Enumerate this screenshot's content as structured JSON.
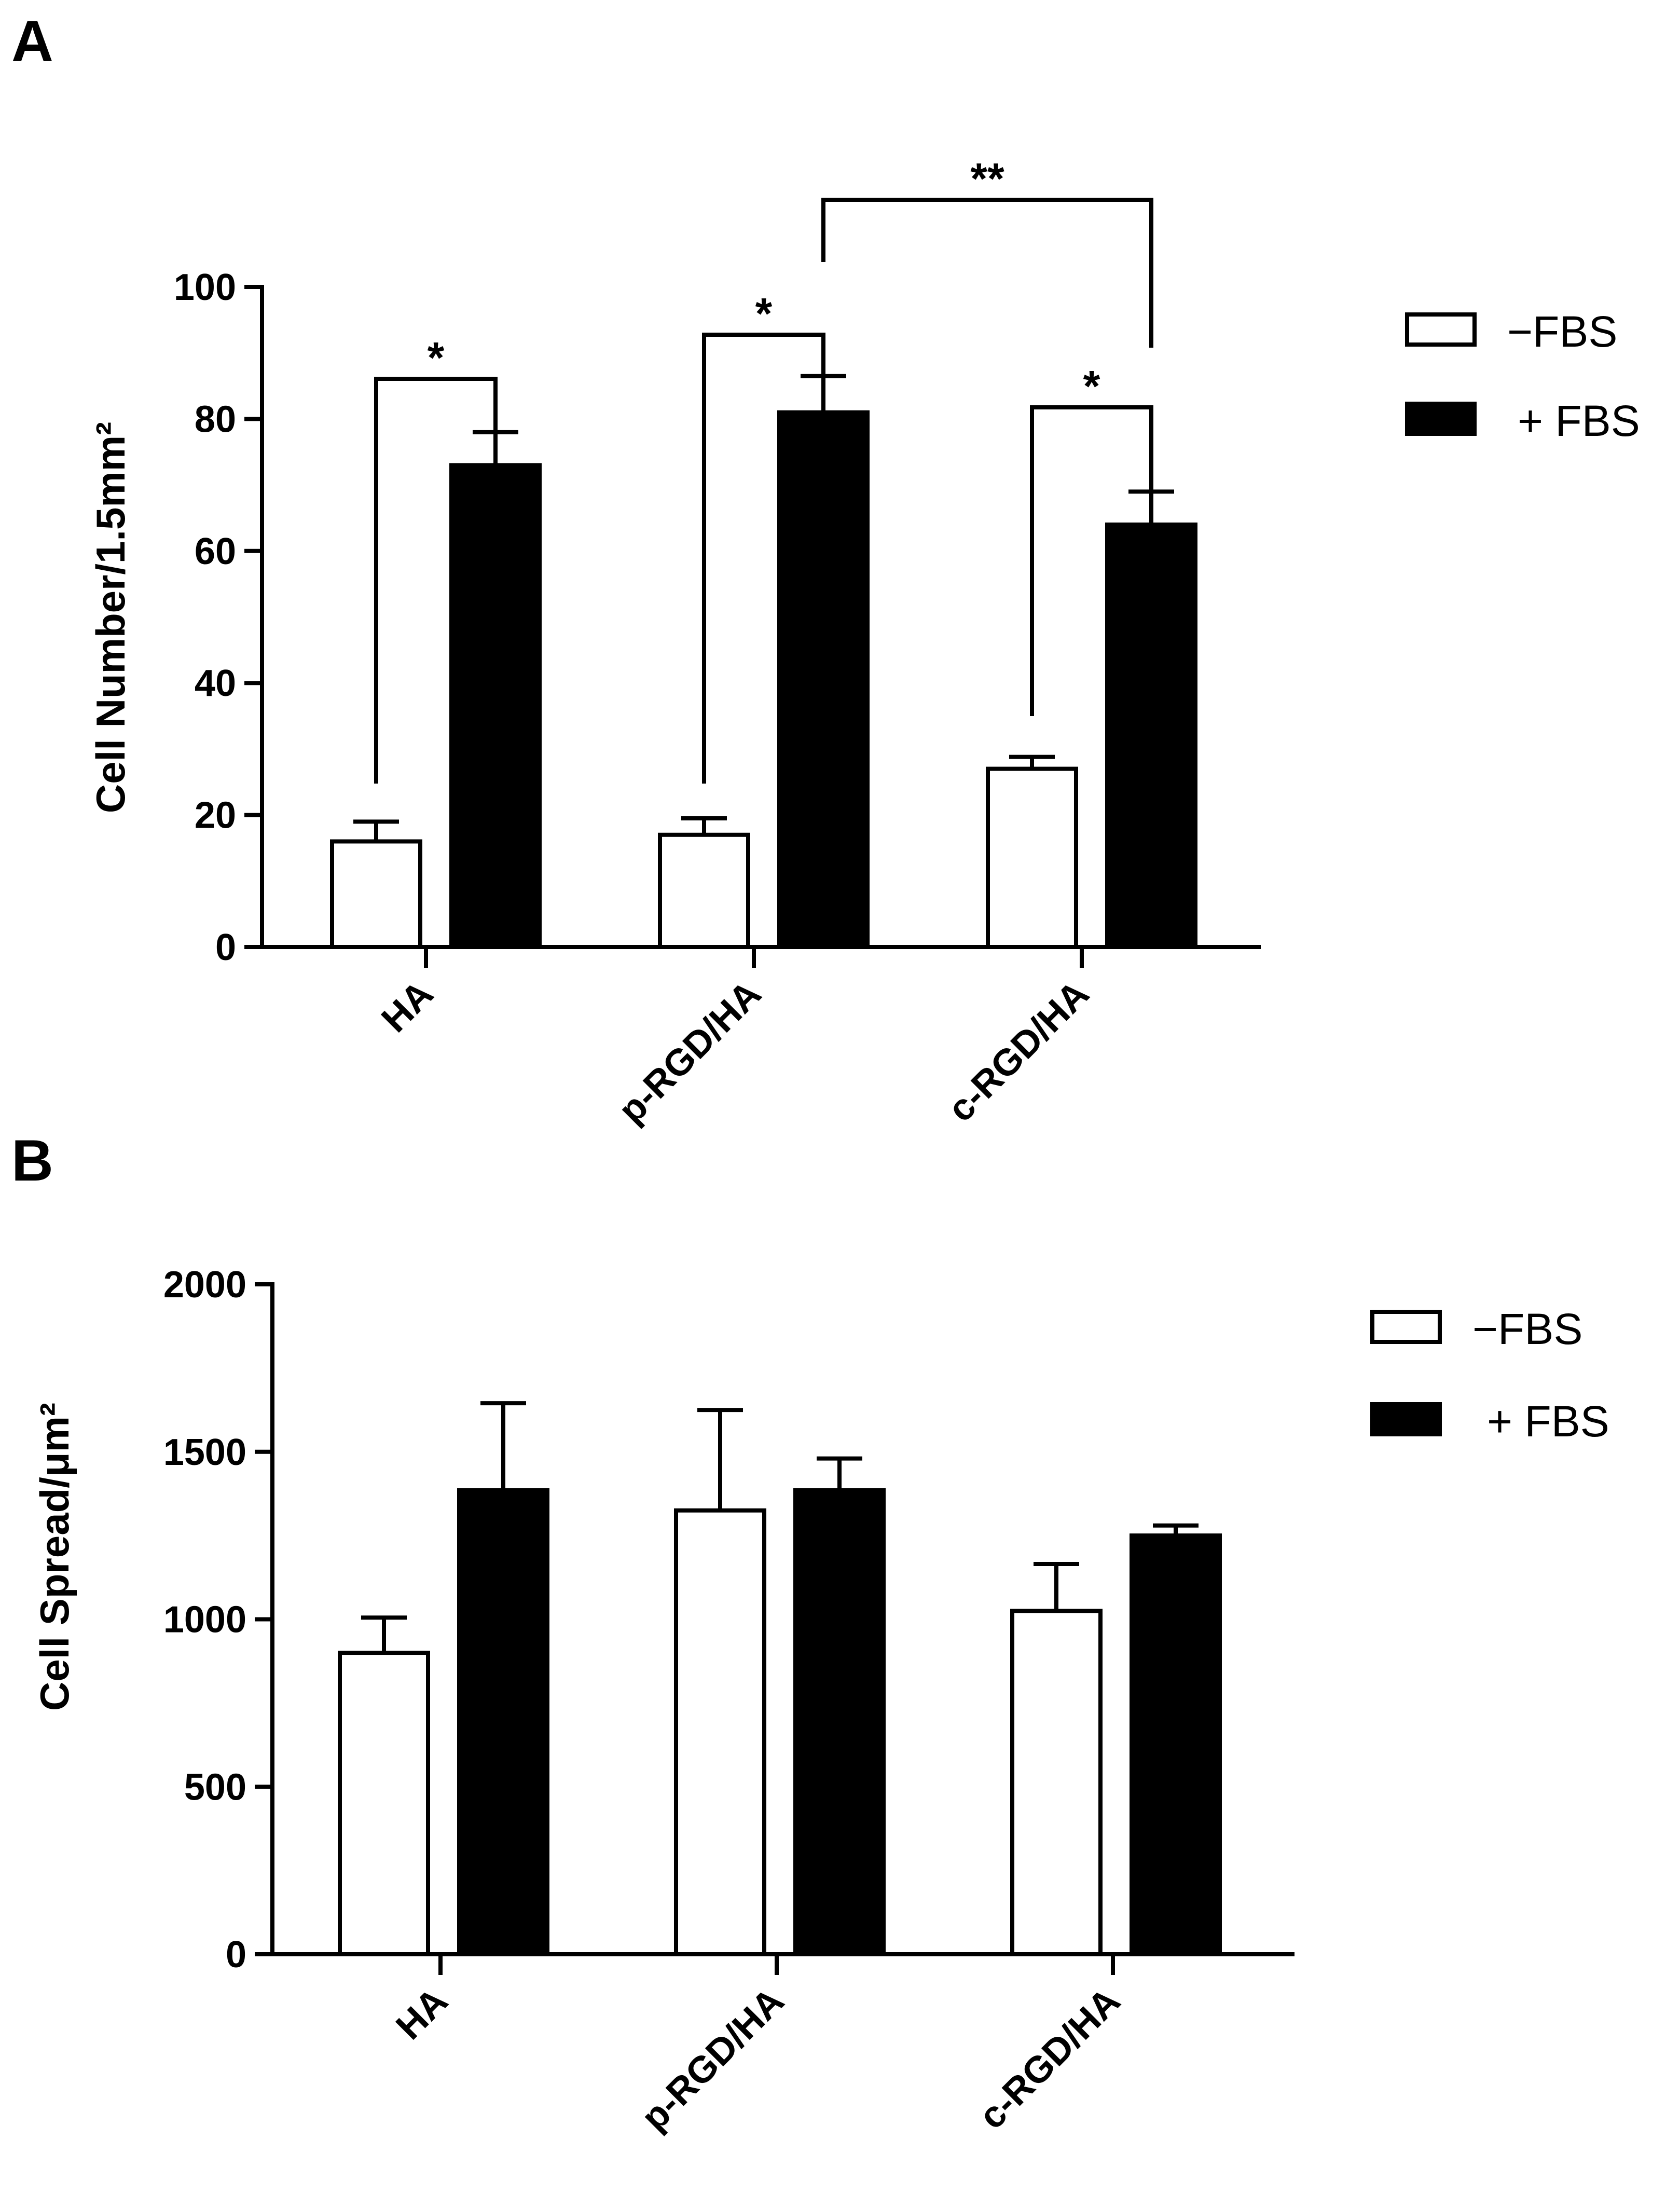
{
  "chart_data": [
    {
      "panel_label": "A",
      "type": "bar",
      "ylabel": "Cell Number/1.5mm²",
      "ylim": [
        0,
        100
      ],
      "yticks": [
        "0",
        "20",
        "40",
        "60",
        "80",
        "100"
      ],
      "categories": [
        "HA",
        "p-RGD/HA",
        "c-RGD/HA"
      ],
      "legend": {
        "placement": "top-right"
      },
      "series": [
        {
          "name": "−FBS",
          "fill": "#ffffff",
          "values": [
            16,
            17,
            27
          ],
          "errors": [
            3,
            2.5,
            1.8
          ]
        },
        {
          "name": "+ FBS",
          "fill": "#000000",
          "values": [
            73,
            81,
            64
          ],
          "errors": [
            5,
            5.5,
            5
          ]
        }
      ],
      "significance": [
        {
          "label": "*",
          "from": [
            0,
            0
          ],
          "to": [
            0,
            1
          ]
        },
        {
          "label": "*",
          "from": [
            1,
            0
          ],
          "to": [
            1,
            1
          ]
        },
        {
          "label": "*",
          "from": [
            2,
            0
          ],
          "to": [
            2,
            1
          ]
        },
        {
          "label": "**",
          "from": [
            1,
            1
          ],
          "to": [
            2,
            1
          ]
        }
      ]
    },
    {
      "panel_label": "B",
      "type": "bar",
      "ylabel": "Cell Spread/μm²",
      "ylim": [
        0,
        2000
      ],
      "yticks": [
        "0",
        "500",
        "1000",
        "1500",
        "2000"
      ],
      "categories": [
        "HA",
        "p-RGD/HA",
        "c-RGD/HA"
      ],
      "legend": {
        "placement": "top-right"
      },
      "series": [
        {
          "name": "−FBS",
          "fill": "#ffffff",
          "values": [
            900,
            1325,
            1025
          ],
          "errors": [
            105,
            300,
            140
          ]
        },
        {
          "name": "+ FBS",
          "fill": "#000000",
          "values": [
            1385,
            1385,
            1250
          ],
          "errors": [
            260,
            95,
            30
          ]
        }
      ]
    }
  ]
}
